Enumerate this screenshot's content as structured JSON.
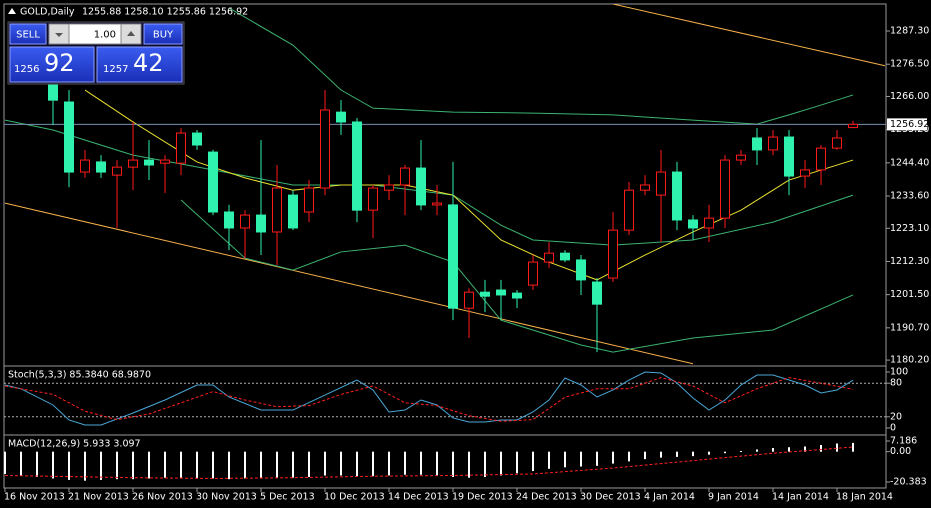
{
  "chart_data": [
    {
      "type": "candlestick",
      "title": "GOLD,Daily",
      "quote": "1255.88 1258.10 1255.86 1256.92",
      "categories": [
        "16 Nov 2013",
        null,
        null,
        null,
        "21 Nov 2013",
        null,
        null,
        null,
        "26 Nov 2013",
        null,
        null,
        null,
        "30 Nov 2013",
        null,
        null,
        null,
        "5 Dec 2013",
        null,
        null,
        null,
        "10 Dec 2013",
        null,
        null,
        null,
        "14 Dec 2013",
        null,
        null,
        null,
        "19 Dec 2013",
        null,
        null,
        null,
        "24 Dec 2013",
        null,
        null,
        null,
        "30 Dec 2013",
        null,
        null,
        null,
        "4 Jan 2014",
        null,
        null,
        null,
        "9 Jan 2014",
        null,
        null,
        null,
        "14 Jan 2014",
        null,
        null,
        null,
        "18 Jan 2014",
        null
      ],
      "open": [
        null,
        null,
        null,
        1269.7,
        1264.2,
        1241.4,
        1244.7,
        1240.4,
        1243.0,
        1245.3,
        1244.3,
        1244.3,
        1254.1,
        1247.9,
        1228.4,
        1223.2,
        1227.4,
        1221.9,
        1233.9,
        1228.4,
        1236.2,
        1260.9,
        1257.7,
        1229.0,
        1235.5,
        1237.2,
        1242.7,
        1230.7,
        1230.7,
        1197.1,
        1202.3,
        1203.0,
        1202.0,
        1204.6,
        1212.1,
        1215.0,
        1212.8,
        1205.6,
        1206.9,
        1222.5,
        1235.5,
        1233.9,
        1241.4,
        1225.8,
        1223.2,
        1226.4,
        1245.3,
        1252.5,
        1248.6,
        1252.8,
        1240.1,
        1242.1,
        1249.2,
        1255.88
      ],
      "high": [
        null,
        null,
        null,
        1271.3,
        1268.1,
        1248.6,
        1246.9,
        1245.3,
        1257.7,
        1251.8,
        1246.9,
        1255.7,
        1255.1,
        1248.6,
        1230.7,
        1229.0,
        1251.8,
        1243.7,
        1235.5,
        1238.8,
        1268.1,
        1264.8,
        1259.0,
        1237.2,
        1240.4,
        1243.7,
        1251.8,
        1237.2,
        1244.7,
        1203.6,
        1206.3,
        1206.3,
        1203.0,
        1214.4,
        1218.6,
        1216.0,
        1214.4,
        1206.9,
        1228.4,
        1238.2,
        1240.4,
        1248.6,
        1244.7,
        1227.4,
        1230.7,
        1246.9,
        1248.6,
        1255.7,
        1255.1,
        1255.1,
        1245.3,
        1250.2,
        1255.1,
        1258.1
      ],
      "low": [
        null,
        null,
        null,
        1256.7,
        1236.5,
        1239.5,
        1239.5,
        1223.2,
        1235.5,
        1238.8,
        1234.6,
        1240.4,
        1248.6,
        1227.4,
        1216.0,
        1213.4,
        1214.4,
        1211.1,
        1222.5,
        1225.1,
        1233.9,
        1253.5,
        1225.1,
        1219.9,
        1232.3,
        1227.4,
        1229.0,
        1227.4,
        1193.2,
        1187.4,
        1195.8,
        1193.2,
        1197.1,
        1203.0,
        1210.2,
        1212.1,
        1201.4,
        1182.8,
        1205.6,
        1220.9,
        1233.9,
        1218.6,
        1222.5,
        1219.3,
        1218.6,
        1223.2,
        1243.7,
        1243.7,
        1246.9,
        1233.9,
        1236.2,
        1237.2,
        1248.6,
        1255.86
      ],
      "close": [
        null,
        null,
        null,
        1264.8,
        1241.4,
        1245.3,
        1241.4,
        1243.0,
        1245.3,
        1243.7,
        1245.3,
        1254.1,
        1250.2,
        1228.4,
        1223.2,
        1227.4,
        1221.9,
        1236.2,
        1223.2,
        1236.2,
        1261.6,
        1257.7,
        1229.0,
        1236.2,
        1237.2,
        1242.7,
        1230.7,
        1231.3,
        1197.1,
        1202.3,
        1201.0,
        1201.4,
        1200.4,
        1212.1,
        1215.0,
        1212.8,
        1206.3,
        1198.4,
        1222.5,
        1235.5,
        1237.2,
        1241.4,
        1225.8,
        1223.2,
        1226.4,
        1245.3,
        1246.9,
        1248.6,
        1252.8,
        1240.1,
        1242.1,
        1249.2,
        1252.5,
        1256.92
      ],
      "up_color": "#ff1a1a",
      "down_color": "#2ef2ae",
      "last_price": 1256.92,
      "last_price_color": "#7890b0",
      "overlays": [
        {
          "color": "#3cb371",
          "x": [
            14,
            18,
            21,
            23,
            28,
            33,
            38,
            43,
            47,
            49,
            51,
            53
          ],
          "values": [
            1294.8,
            1282.7,
            1268.1,
            1262.2,
            1260.9,
            1260.6,
            1260.0,
            1258.3,
            1257.0,
            1260.0,
            1263.2,
            1266.5
          ]
        },
        {
          "color": "#3cb371",
          "x": [
            0,
            3,
            8,
            13,
            18,
            23,
            28,
            31,
            33,
            38,
            43,
            48,
            53
          ],
          "values": [
            1258.3,
            1255.1,
            1246.9,
            1242.1,
            1237.2,
            1237.2,
            1233.9,
            1224.1,
            1219.3,
            1217.6,
            1219.3,
            1225.1,
            1233.9
          ]
        },
        {
          "color": "#3cb371",
          "x": [
            11,
            15,
            18,
            21,
            25,
            28,
            31,
            36,
            38,
            43,
            48,
            53
          ],
          "values": [
            1232.3,
            1213.4,
            1209.5,
            1215.4,
            1217.6,
            1212.1,
            1193.2,
            1185.1,
            1182.8,
            1187.4,
            1190.0,
            1201.4
          ]
        },
        {
          "color": "#e8e030",
          "x": [
            5,
            8,
            12,
            15,
            18,
            21,
            25,
            28,
            31,
            34,
            37,
            40,
            43,
            46,
            49,
            53
          ],
          "values": [
            1268.1,
            1257.7,
            1244.7,
            1239.5,
            1235.5,
            1237.2,
            1237.2,
            1233.9,
            1219.3,
            1212.1,
            1206.3,
            1214.4,
            1221.9,
            1229.0,
            1238.8,
            1245.3
          ]
        }
      ],
      "trendlines": [
        {
          "color": "#f5b04a",
          "x": [
            0,
            43
          ],
          "values": [
            1231.3,
            1179.0
          ]
        },
        {
          "color": "#f5b04a",
          "x": [
            38,
            55
          ],
          "values": [
            1296.1,
            1276.0
          ]
        }
      ],
      "ylim": [
        1178.6,
        1296.1
      ],
      "yticks": [
        {
          "value": 1180.2,
          "label": "1180.20"
        },
        {
          "value": 1190.7,
          "label": "1190.70"
        },
        {
          "value": 1201.5,
          "label": "1201.50"
        },
        {
          "value": 1212.3,
          "label": "1212.30"
        },
        {
          "value": 1223.1,
          "label": "1223.10"
        },
        {
          "value": 1233.6,
          "label": "1233.60"
        },
        {
          "value": 1244.4,
          "label": "1244.40"
        },
        {
          "value": 1255.2,
          "label": "1255.20"
        },
        {
          "value": 1266.0,
          "label": "1266.00"
        },
        {
          "value": 1276.5,
          "label": "1276.50"
        },
        {
          "value": 1287.3,
          "label": "1287.30"
        }
      ]
    },
    {
      "type": "line",
      "title": "Stoch(5,3,3) 85.3840 68.9870",
      "series": [
        {
          "color": "#4aa8d8",
          "dash": false,
          "x": [
            0,
            1,
            3,
            4,
            5,
            6,
            8,
            10,
            12,
            13,
            14,
            16,
            18,
            20,
            22,
            23,
            24,
            25,
            26,
            27,
            28,
            29,
            30,
            31,
            32,
            33,
            34,
            35,
            36,
            37,
            38,
            39,
            40,
            41,
            42,
            43,
            44,
            45,
            46,
            47,
            48,
            49,
            50,
            51,
            52,
            53
          ],
          "values": [
            76.8,
            70,
            41.1,
            14.3,
            5.4,
            5.4,
            26.8,
            50,
            76.8,
            76.8,
            55.4,
            32.1,
            32.1,
            58.9,
            85.7,
            67.9,
            28.6,
            32.1,
            50,
            41.1,
            17.9,
            10.7,
            10.7,
            14.3,
            14.3,
            28.6,
            50,
            89.3,
            76.8,
            55.4,
            67.9,
            85.7,
            100,
            98.2,
            80.4,
            53.6,
            32.1,
            50,
            76.8,
            94.6,
            94.6,
            85.7,
            76.8,
            62.5,
            67.9,
            85.384
          ]
        },
        {
          "color": "#ff2020",
          "dash": true,
          "x": [
            0,
            3,
            5,
            7,
            9,
            11,
            13,
            15,
            17,
            19,
            21,
            23,
            25,
            27,
            29,
            31,
            33,
            35,
            37,
            39,
            41,
            43,
            45,
            47,
            49,
            51,
            53
          ],
          "values": [
            75,
            60,
            30,
            15,
            25,
            45,
            65,
            50,
            38,
            40,
            60,
            75,
            45,
            40,
            22,
            12,
            15,
            55,
            70,
            70,
            90,
            75,
            45,
            70,
            90,
            80,
            68.987
          ]
        }
      ],
      "levels": [
        20,
        80
      ],
      "ylim": [
        0,
        100
      ],
      "yticks": [
        0,
        20,
        80,
        100
      ]
    },
    {
      "type": "bar",
      "title": "MACD(12,26,9) 5.933 3.097",
      "color": "#ffffff",
      "values": [
        -15,
        -16,
        -17,
        -18,
        -19,
        -19.5,
        -19,
        -18.5,
        -18.5,
        -18,
        -17.5,
        -17.5,
        -18,
        -18,
        -18.5,
        -18,
        -18,
        -17.5,
        -17.5,
        -17,
        -16,
        -16,
        -16.5,
        -16.5,
        -16,
        -15.5,
        -15.5,
        -16,
        -17,
        -17.5,
        -17,
        -16,
        -14.5,
        -13,
        -11.5,
        -10.5,
        -10,
        -9.5,
        -8,
        -6.5,
        -5,
        -4,
        -3.5,
        -3,
        -2,
        -1,
        0.5,
        1.5,
        2.5,
        3,
        3.5,
        4.5,
        5.5,
        5.933
      ],
      "series": [
        {
          "color": "#ff2020",
          "dash": true,
          "x": [
            0,
            8,
            13,
            18,
            23,
            28,
            33,
            38,
            43,
            48,
            53
          ],
          "values": [
            -16,
            -17.5,
            -18,
            -17.5,
            -16.5,
            -16,
            -15,
            -11,
            -6,
            -1,
            3.097
          ]
        }
      ],
      "ylim": [
        -20.383,
        7.186
      ],
      "yticks": [
        -20.383,
        {
          "value": 0,
          "label": "0.00"
        },
        7.186
      ]
    }
  ],
  "trade_panel": {
    "sell": "SELL",
    "lots": "1.00",
    "buy": "BUY",
    "bid_big": "1256",
    "bid_pips": "92",
    "ask_big": "1257",
    "ask_pips": "42"
  }
}
